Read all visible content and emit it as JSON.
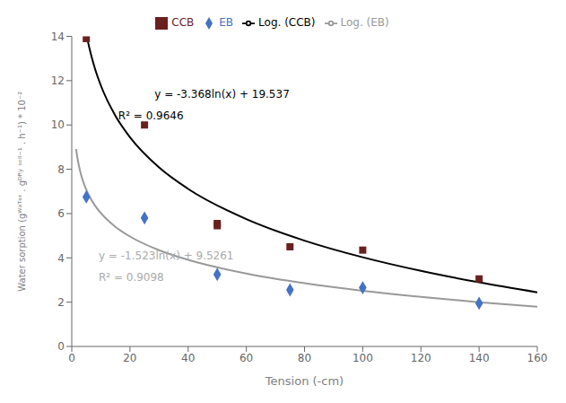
{
  "chart_data": {
    "type": "scatter",
    "xlabel": "Tension (-cm)",
    "ylabel": "Water sorption (gᵂᵃᵀᵉʳ . gᴰᴿʸ ˢᵒᴵˡ⁻¹ . h⁻¹) * 10⁻²",
    "xlim": [
      0,
      160
    ],
    "ylim": [
      0,
      14
    ],
    "xticks": [
      0,
      20,
      40,
      60,
      80,
      100,
      120,
      140,
      160
    ],
    "yticks": [
      0,
      2,
      4,
      6,
      8,
      10,
      12,
      14
    ],
    "grid": false,
    "series": [
      {
        "name": "CCB",
        "type": "scatter",
        "marker": "square",
        "color": "#6b2020",
        "x": [
          5,
          25,
          50,
          50,
          75,
          100,
          140
        ],
        "values": [
          13.9,
          10.0,
          5.55,
          5.45,
          4.5,
          4.35,
          3.05
        ]
      },
      {
        "name": "EB",
        "type": "scatter",
        "marker": "diamond",
        "color": "#4472c4",
        "x": [
          5,
          25,
          50,
          75,
          100,
          140
        ],
        "values": [
          6.75,
          5.8,
          3.25,
          2.55,
          2.65,
          1.95
        ]
      },
      {
        "name": "Log. (CCB)",
        "type": "line",
        "color": "#000000",
        "x": [
          5.2,
          6,
          8,
          10,
          15,
          20,
          30,
          40,
          60,
          80,
          100,
          120,
          140,
          160
        ],
        "values": [
          13.9843,
          13.5024,
          12.5334,
          11.7819,
          10.4163,
          9.4474,
          8.0818,
          7.1129,
          5.7472,
          4.7783,
          4.0268,
          3.4127,
          2.8936,
          2.4438
        ]
      },
      {
        "name": "Log. (EB)",
        "type": "line",
        "color": "#999999",
        "x": [
          1.5,
          2,
          3,
          4,
          5,
          6,
          8,
          10,
          15,
          20,
          30,
          40,
          60,
          80,
          100,
          120,
          140,
          160
        ],
        "values": [
          8.9086,
          8.4704,
          7.8529,
          7.4148,
          7.0749,
          6.7973,
          6.3591,
          6.0193,
          5.4017,
          4.9636,
          4.3461,
          3.9079,
          3.2904,
          2.8523,
          2.5124,
          2.2347,
          2.0,
          1.7966
        ]
      }
    ],
    "annotations": [
      {
        "text": "y = -3.368ln(x) + 19.537",
        "color": "#000000"
      },
      {
        "text": "R² = 0.9646",
        "color": "#000000"
      },
      {
        "text": "y = -1.523ln(x) + 9.5261",
        "color": "#aaaaaa"
      },
      {
        "text": "R² = 0.9098",
        "color": "#aaaaaa"
      }
    ]
  }
}
